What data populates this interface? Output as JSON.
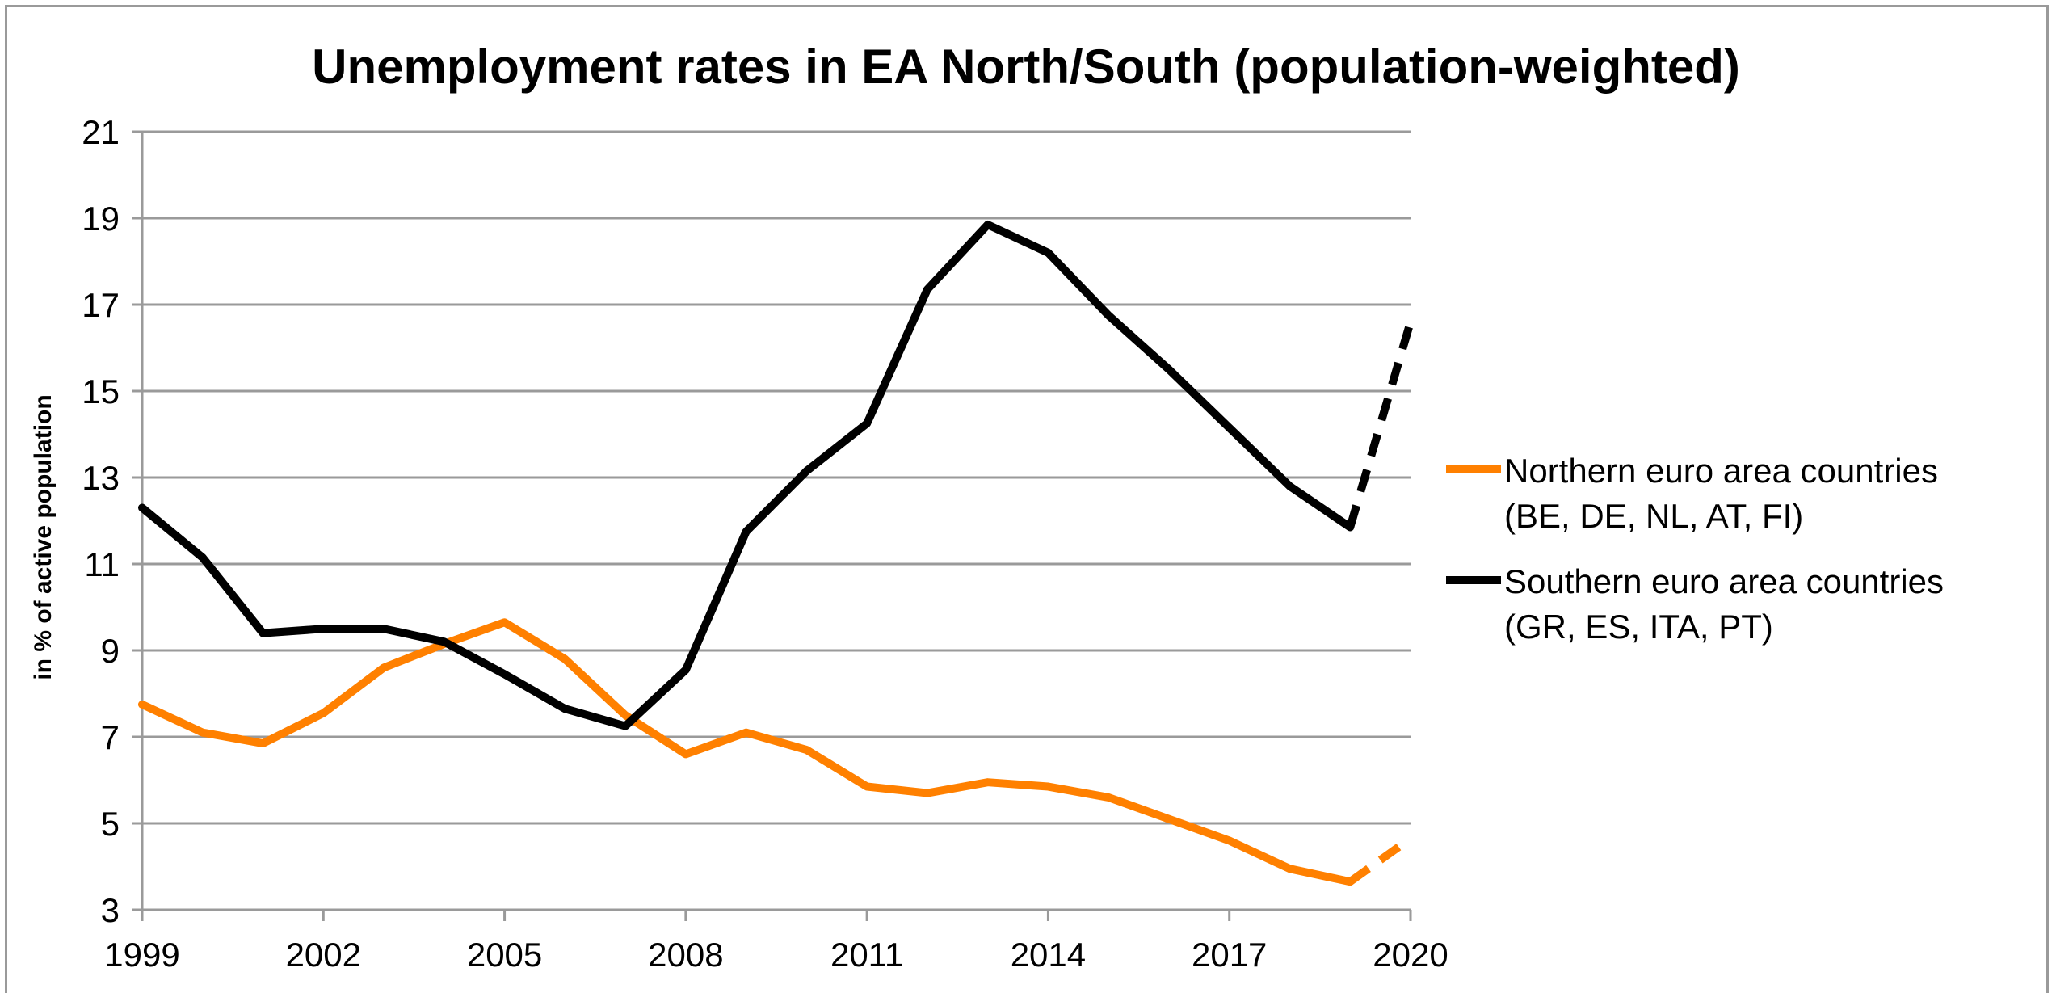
{
  "chart_data": {
    "type": "line",
    "title": "Unemployment rates in EA North/South (population-weighted)",
    "xlabel": "",
    "ylabel": "in % of active population",
    "xlim": [
      1999,
      2020
    ],
    "ylim": [
      3,
      21
    ],
    "x_ticks": [
      "1999",
      "2002",
      "2005",
      "2008",
      "2011",
      "2014",
      "2017",
      "2020"
    ],
    "y_ticks": [
      "3",
      "5",
      "7",
      "9",
      "11",
      "13",
      "15",
      "17",
      "19",
      "21"
    ],
    "grid": "horizontal",
    "legend_position": "right",
    "series": [
      {
        "name_lines": [
          "Northern euro area countries",
          "(BE, DE, NL, AT, FI)"
        ],
        "color": "#ff8000",
        "x": [
          1999,
          2000,
          2001,
          2002,
          2003,
          2004,
          2005,
          2006,
          2007,
          2008,
          2009,
          2010,
          2011,
          2012,
          2013,
          2014,
          2015,
          2016,
          2017,
          2018,
          2019
        ],
        "values": [
          7.75,
          7.1,
          6.85,
          7.55,
          8.6,
          9.15,
          9.65,
          8.8,
          7.5,
          6.6,
          7.1,
          6.7,
          5.85,
          5.7,
          5.95,
          5.85,
          5.6,
          5.1,
          4.6,
          3.95,
          3.65
        ],
        "projection": {
          "x": [
            2019,
            2020
          ],
          "values": [
            3.65,
            4.65
          ]
        }
      },
      {
        "name_lines": [
          "Southern euro area countries",
          "(GR, ES, ITA, PT)"
        ],
        "color": "#000000",
        "x": [
          1999,
          2000,
          2001,
          2002,
          2003,
          2004,
          2005,
          2006,
          2007,
          2008,
          2009,
          2010,
          2011,
          2012,
          2013,
          2014,
          2015,
          2016,
          2017,
          2018,
          2019
        ],
        "values": [
          12.3,
          11.15,
          9.4,
          9.5,
          9.5,
          9.2,
          8.45,
          7.65,
          7.25,
          8.55,
          11.75,
          13.15,
          14.25,
          17.35,
          18.85,
          18.2,
          16.75,
          15.5,
          14.15,
          12.8,
          11.85
        ],
        "projection": {
          "x": [
            2019,
            2020
          ],
          "values": [
            11.85,
            16.6
          ]
        }
      }
    ]
  }
}
